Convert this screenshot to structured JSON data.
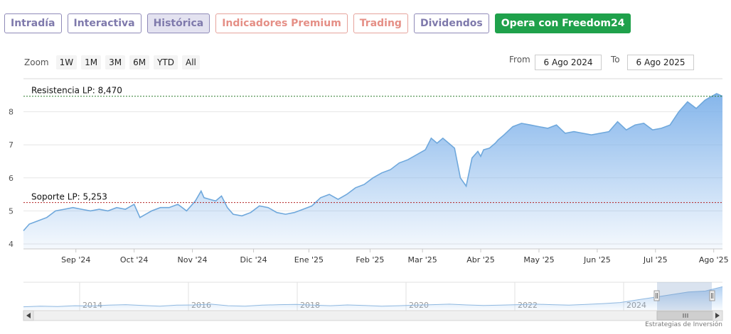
{
  "tabs": [
    {
      "label": "Intradía",
      "style": "purple"
    },
    {
      "label": "Interactiva",
      "style": "purple"
    },
    {
      "label": "Histórica",
      "style": "active"
    },
    {
      "label": "Indicadores Premium",
      "style": "red"
    },
    {
      "label": "Trading",
      "style": "red"
    },
    {
      "label": "Dividendos",
      "style": "purple"
    },
    {
      "label": "Opera con Freedom24",
      "style": "green"
    }
  ],
  "zoom": {
    "label": "Zoom",
    "buttons": [
      "1W",
      "1M",
      "3M",
      "6M",
      "YTD",
      "All"
    ]
  },
  "date_range": {
    "from_label": "From",
    "from_value": "6 Ago 2024",
    "to_label": "To",
    "to_value": "6 Ago 2025"
  },
  "credit": "Estrategias de Inversión",
  "colors": {
    "line": "#6fa8dc",
    "area_top": "#7fb2ea",
    "resistance_line": "#2a7a2a",
    "support_line": "#b22222",
    "button_green": "#1fa14b"
  },
  "chart_data": {
    "type": "area",
    "y_ticks": [
      4,
      5,
      6,
      7,
      8
    ],
    "ylim": [
      3.85,
      9.0
    ],
    "x_ticks": [
      "Sep '24",
      "Oct '24",
      "Nov '24",
      "Dic '24",
      "Ene '25",
      "Feb '25",
      "Mar '25",
      "Abr '25",
      "May '25",
      "Jun '25",
      "Jul '25",
      "Ago '25"
    ],
    "x_tick_pos": [
      0.9,
      1.9,
      2.9,
      3.95,
      4.9,
      5.95,
      6.85,
      7.85,
      8.85,
      9.85,
      10.85,
      11.85
    ],
    "series": [
      {
        "x": [
          0.0,
          0.1,
          0.25,
          0.4,
          0.55,
          0.7,
          0.85,
          1.0,
          1.15,
          1.3,
          1.45,
          1.6,
          1.75,
          1.9,
          2.0,
          2.1,
          2.2,
          2.35,
          2.5,
          2.65,
          2.8,
          2.95,
          3.05,
          3.1,
          3.2,
          3.3,
          3.4,
          3.5,
          3.6,
          3.75,
          3.9,
          4.05,
          4.2,
          4.35,
          4.5,
          4.65,
          4.8,
          4.95,
          5.1,
          5.25,
          5.4,
          5.55,
          5.7,
          5.85,
          6.0,
          6.15,
          6.3,
          6.45,
          6.6,
          6.75,
          6.9,
          7.0,
          7.1,
          7.2,
          7.3,
          7.4,
          7.5,
          7.6,
          7.7,
          7.8,
          7.85,
          7.9,
          8.0,
          8.1,
          8.15,
          8.25,
          8.4,
          8.55,
          8.7,
          8.85,
          9.0,
          9.15,
          9.3,
          9.45,
          9.6,
          9.75,
          9.9,
          10.05,
          10.2,
          10.35,
          10.5,
          10.65,
          10.8,
          10.95,
          11.1,
          11.25,
          11.4,
          11.55,
          11.7,
          11.8,
          11.9,
          12.0
        ],
        "values": [
          4.4,
          4.6,
          4.7,
          4.8,
          5.0,
          5.05,
          5.1,
          5.05,
          5.0,
          5.05,
          5.0,
          5.1,
          5.05,
          5.2,
          4.8,
          4.9,
          5.0,
          5.1,
          5.1,
          5.2,
          5.0,
          5.3,
          5.6,
          5.4,
          5.35,
          5.3,
          5.45,
          5.1,
          4.9,
          4.85,
          4.95,
          5.15,
          5.1,
          4.95,
          4.9,
          4.95,
          5.05,
          5.15,
          5.4,
          5.5,
          5.35,
          5.5,
          5.7,
          5.8,
          6.0,
          6.15,
          6.25,
          6.45,
          6.55,
          6.7,
          6.85,
          7.2,
          7.05,
          7.2,
          7.05,
          6.9,
          6.0,
          5.75,
          6.6,
          6.8,
          6.65,
          6.85,
          6.9,
          7.05,
          7.15,
          7.3,
          7.55,
          7.65,
          7.6,
          7.55,
          7.5,
          7.6,
          7.35,
          7.4,
          7.35,
          7.3,
          7.35,
          7.4,
          7.7,
          7.45,
          7.6,
          7.65,
          7.45,
          7.5,
          7.6,
          8.0,
          8.3,
          8.1,
          8.35,
          8.45,
          8.55,
          8.47
        ]
      }
    ],
    "reference_lines": [
      {
        "label": "Resistencia LP: 8,470",
        "value": 8.47
      },
      {
        "label": "Soporte LP: 5,253",
        "value": 5.253
      }
    ],
    "navigator": {
      "x_ticks": [
        "2014",
        "2016",
        "2018",
        "2020",
        "2022",
        "2024"
      ],
      "values": [
        4.6,
        4.7,
        4.65,
        4.8,
        4.75,
        4.9,
        5.0,
        4.85,
        4.7,
        4.9,
        4.95,
        5.1,
        4.8,
        4.7,
        4.9,
        5.0,
        5.05,
        4.9,
        4.8,
        4.95,
        4.85,
        4.7,
        4.8,
        4.9,
        5.0,
        5.1,
        4.95,
        4.85,
        4.9,
        5.0,
        5.1,
        5.0,
        4.9,
        5.05,
        5.2,
        5.4,
        5.9,
        6.4,
        6.9,
        7.4,
        7.6,
        8.4
      ],
      "ylim": [
        4.0,
        9.0
      ]
    }
  }
}
